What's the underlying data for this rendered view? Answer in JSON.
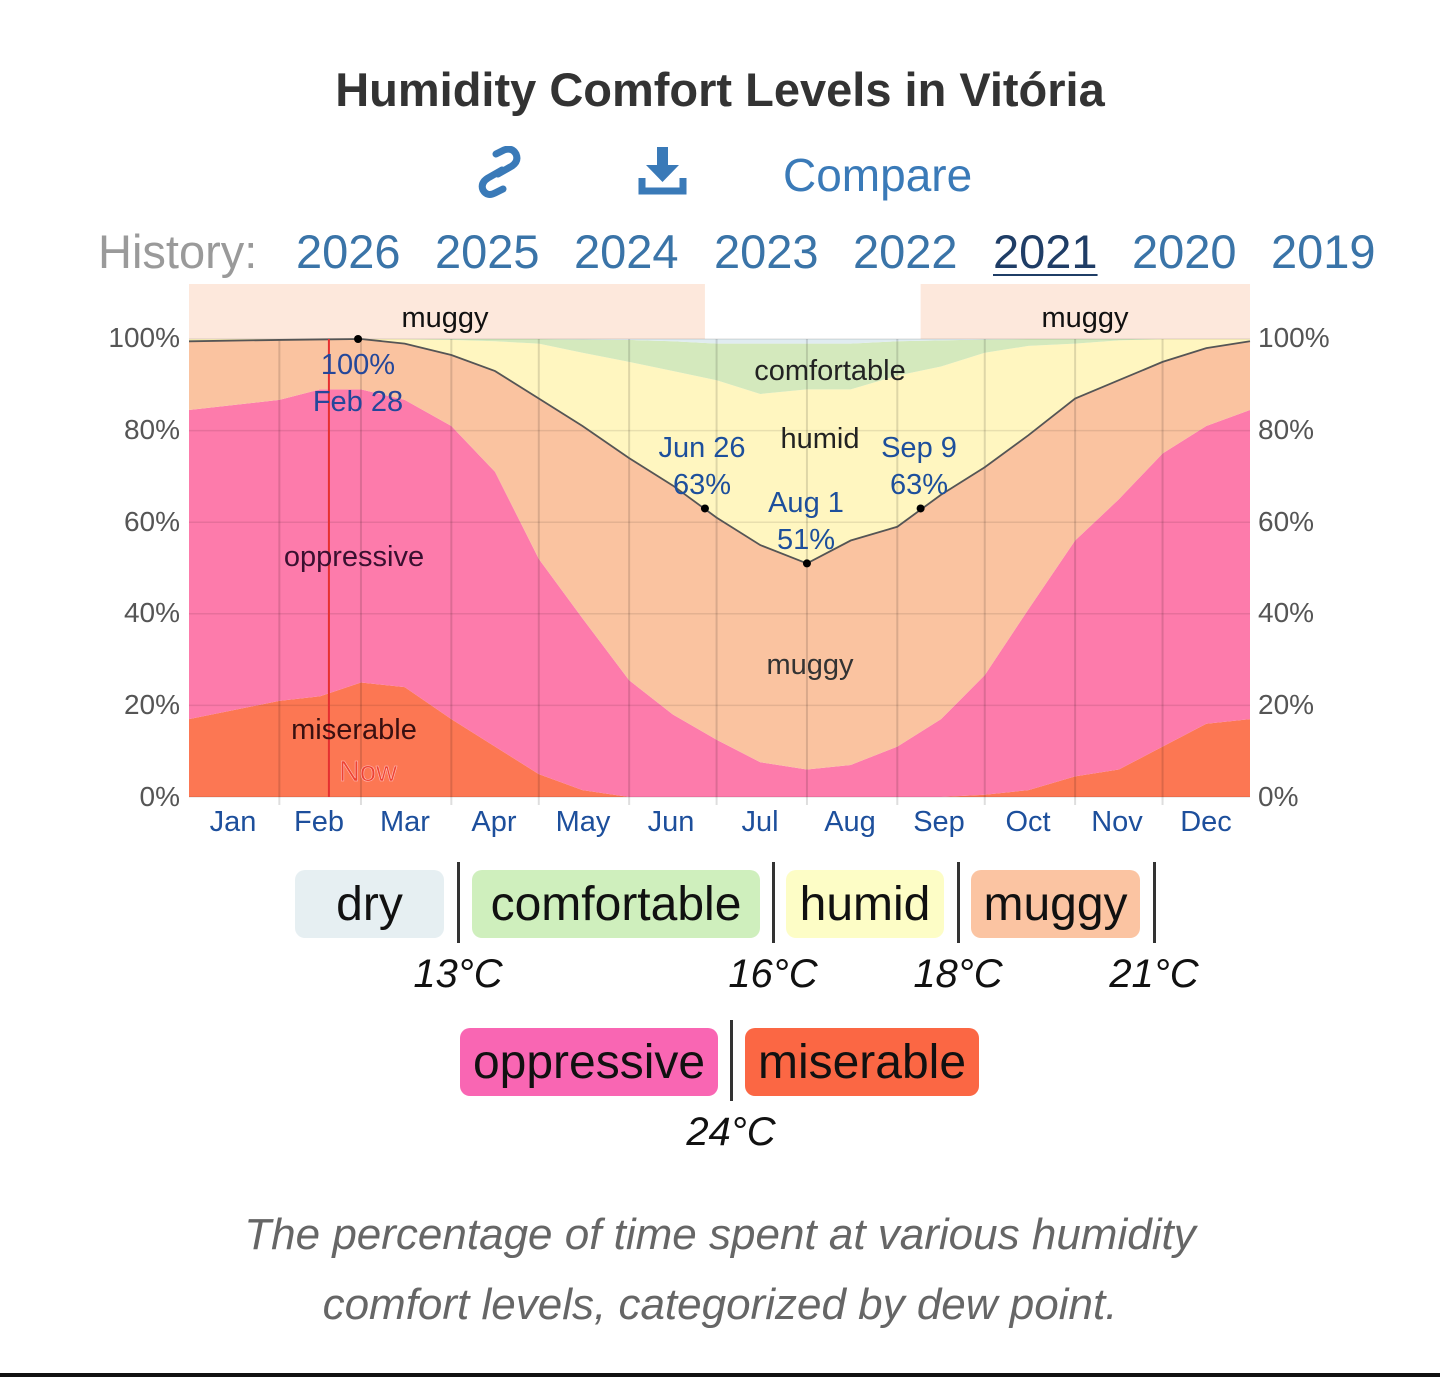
{
  "header": {
    "title": "Humidity Comfort Levels in Vitória",
    "compare_label": "Compare",
    "icons": [
      "link-icon",
      "download-icon"
    ]
  },
  "history": {
    "label": "History:",
    "years": [
      "2026",
      "2025",
      "2024",
      "2023",
      "2022",
      "2021",
      "2020",
      "2019"
    ],
    "selected": "2021"
  },
  "chart_data": {
    "type": "area",
    "title": "Humidity Comfort Levels in Vitória",
    "xlabel": "",
    "ylabel": "",
    "ylim": [
      0,
      100
    ],
    "y_ticks": [
      "0%",
      "20%",
      "40%",
      "60%",
      "80%",
      "100%"
    ],
    "months": [
      "Jan",
      "Feb",
      "Mar",
      "Apr",
      "May",
      "Jun",
      "Jul",
      "Aug",
      "Sep",
      "Oct",
      "Nov",
      "Dec"
    ],
    "grid": true,
    "x_days": [
      0,
      31,
      45,
      59,
      74,
      90,
      105,
      120,
      135,
      151,
      166,
      181,
      196,
      212,
      227,
      243,
      258,
      273,
      288,
      304,
      319,
      334,
      349,
      364
    ],
    "series_note": "cumulative upper boundary (%) of each band from bottom",
    "series": [
      {
        "name": "miserable",
        "color": "#fc7753",
        "values": [
          17,
          21,
          22,
          25,
          24,
          17,
          11,
          5,
          1.5,
          0,
          0,
          0,
          0,
          0,
          0,
          0,
          0,
          0.5,
          1.5,
          4.5,
          6,
          11,
          16,
          17
        ]
      },
      {
        "name": "oppressive",
        "color": "#fd7bab",
        "values": [
          84.5,
          86.7,
          89,
          89,
          86.7,
          81,
          71,
          52,
          39,
          25.5,
          18,
          12.5,
          7.6,
          6,
          7,
          11,
          17,
          26.6,
          41,
          56,
          65,
          75,
          81,
          84.5
        ]
      },
      {
        "name": "muggy",
        "color": "#fac3a0",
        "values": [
          99.5,
          99.8,
          99.9,
          100,
          99,
          96.5,
          93,
          87,
          81,
          74,
          68,
          61,
          55,
          51,
          56,
          59,
          66,
          72,
          79,
          87,
          91,
          95,
          98,
          99.5
        ]
      },
      {
        "name": "humid",
        "color": "#fff6c0",
        "values": [
          100,
          100,
          100,
          100,
          100,
          99.8,
          99.5,
          99,
          97,
          95,
          93,
          91,
          88,
          89,
          89,
          92,
          94,
          97,
          98.5,
          99,
          99.7,
          100,
          100,
          100
        ]
      },
      {
        "name": "comfortable",
        "color": "#d4e9bd",
        "values": [
          100,
          100,
          100,
          100,
          100,
          100,
          100,
          100,
          99.9,
          99.8,
          99.5,
          99,
          99,
          99,
          99,
          99.5,
          99.7,
          99.9,
          100,
          100,
          100,
          100,
          100,
          100
        ]
      },
      {
        "name": "dry",
        "color": "#e0ecf0",
        "values": [
          100,
          100,
          100,
          100,
          100,
          100,
          100,
          100,
          100,
          100,
          100,
          100,
          100,
          100,
          100,
          100,
          100,
          100,
          100,
          100,
          100,
          100,
          100,
          100
        ]
      }
    ],
    "band_labels": {
      "miserable": "miserable",
      "oppressive": "oppressive",
      "muggy": "muggy",
      "humid": "humid",
      "comfortable": "comfortable"
    },
    "top_bands": [
      {
        "label": "muggy",
        "from_day": 0,
        "to_day": 177
      },
      {
        "label": "muggy",
        "from_day": 251,
        "to_day": 364
      }
    ],
    "annotations": [
      {
        "day": 58,
        "value": 100,
        "line1": "100%",
        "line2": "Feb 28"
      },
      {
        "day": 177,
        "value": 63,
        "line1": "Jun 26",
        "line2": "63%"
      },
      {
        "day": 212,
        "value": 51,
        "line1": "Aug 1",
        "line2": "51%"
      },
      {
        "day": 251,
        "value": 63,
        "line1": "Sep 9",
        "line2": "63%"
      }
    ],
    "now_marker": {
      "day": 48,
      "label": "Now"
    }
  },
  "legend": {
    "row1": [
      "dry",
      "comfortable",
      "humid",
      "muggy"
    ],
    "row1_thresholds": [
      "13°C",
      "16°C",
      "18°C",
      "21°C"
    ],
    "row2": [
      "oppressive",
      "miserable"
    ],
    "row2_thresholds": [
      "24°C"
    ],
    "colors": {
      "dry": "#e6eff2",
      "comfortable": "#cfefbd",
      "humid": "#fdfdc6",
      "muggy": "#fbc4a2",
      "oppressive": "#f966b3",
      "miserable": "#fb6744"
    }
  },
  "caption": {
    "line1": "The percentage of time spent at various humidity",
    "line2": "comfort levels, categorized by dew point."
  }
}
